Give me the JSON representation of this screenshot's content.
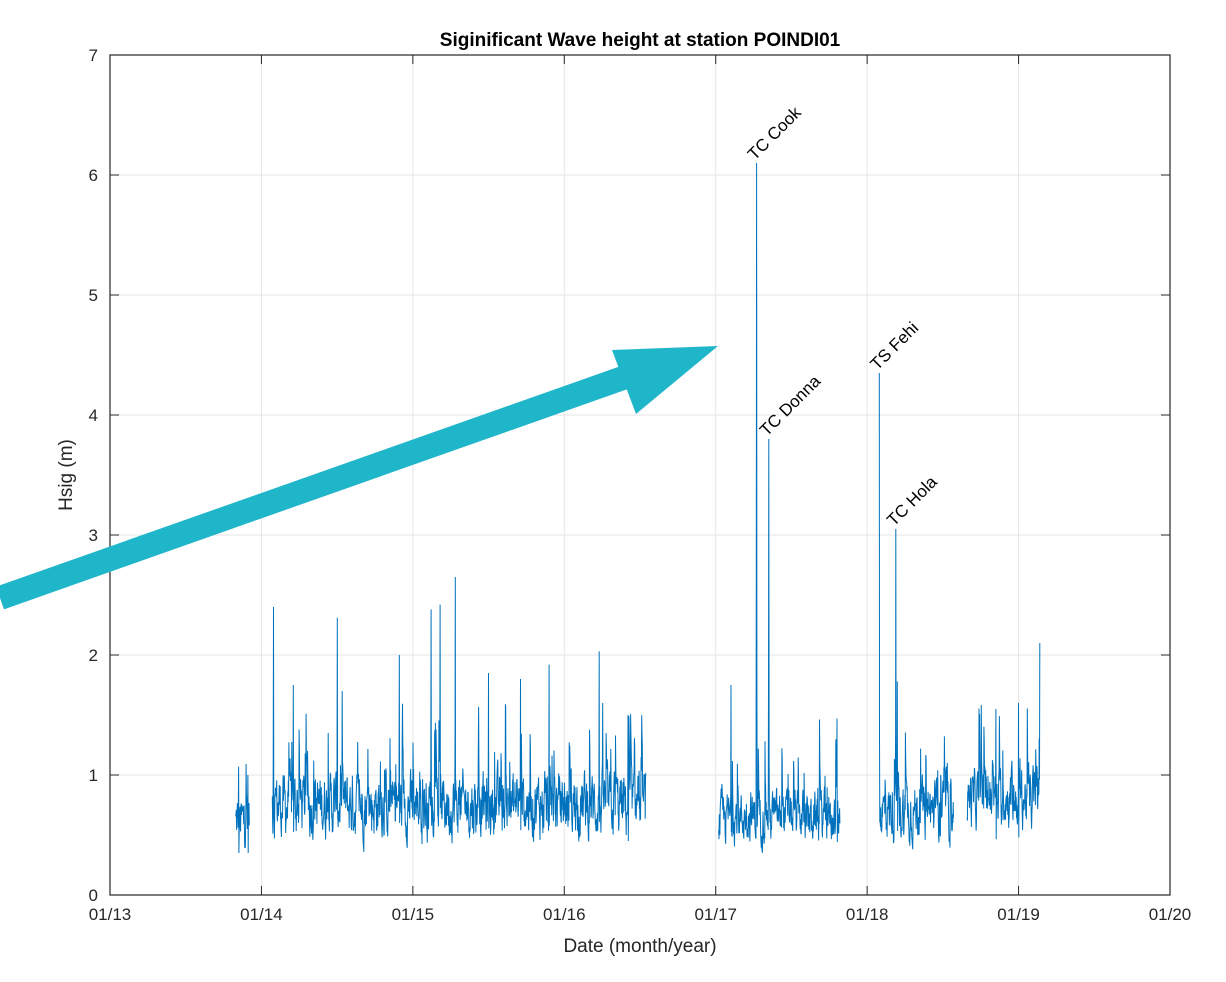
{
  "colors": {
    "series": "#0072BD",
    "arrow": "#1FB6C9",
    "grid": "#E4E4E4",
    "axis": "#262626"
  },
  "chart_data": {
    "type": "line",
    "title": "Siginificant Wave height at station POINDI01",
    "xlabel": "Date (month/year)",
    "ylabel": "Hsig (m)",
    "xlim": [
      2013.0,
      2020.0
    ],
    "ylim": [
      0,
      7
    ],
    "grid": true,
    "x_ticks": [
      {
        "value": 2013,
        "label": "01/13"
      },
      {
        "value": 2014,
        "label": "01/14"
      },
      {
        "value": 2015,
        "label": "01/15"
      },
      {
        "value": 2016,
        "label": "01/16"
      },
      {
        "value": 2017,
        "label": "01/17"
      },
      {
        "value": 2018,
        "label": "01/18"
      },
      {
        "value": 2019,
        "label": "01/19"
      },
      {
        "value": 2020,
        "label": "01/20"
      }
    ],
    "y_ticks": [
      0,
      1,
      2,
      3,
      4,
      5,
      6,
      7
    ],
    "segments": [
      {
        "x_start": 2013.83,
        "x_end": 2013.92,
        "base_mean": 0.6,
        "base_amp": 0.4,
        "peaks": [
          {
            "x": 2013.85,
            "y": 1.07
          },
          {
            "x": 2013.91,
            "y": 1.0
          }
        ]
      },
      {
        "x_start": 2014.07,
        "x_end": 2016.54,
        "base_mean": 0.75,
        "base_amp": 0.45,
        "peaks": [
          {
            "x": 2014.08,
            "y": 2.4
          },
          {
            "x": 2014.21,
            "y": 1.75
          },
          {
            "x": 2014.5,
            "y": 2.31
          },
          {
            "x": 2014.91,
            "y": 2.0
          },
          {
            "x": 2015.12,
            "y": 2.38
          },
          {
            "x": 2015.18,
            "y": 2.42
          },
          {
            "x": 2015.28,
            "y": 2.65
          },
          {
            "x": 2015.5,
            "y": 1.85
          },
          {
            "x": 2015.71,
            "y": 1.8
          },
          {
            "x": 2015.9,
            "y": 1.92
          },
          {
            "x": 2016.23,
            "y": 2.03
          },
          {
            "x": 2016.42,
            "y": 1.5
          }
        ]
      },
      {
        "x_start": 2017.02,
        "x_end": 2017.82,
        "base_mean": 0.65,
        "base_amp": 0.35,
        "peaks": [
          {
            "x": 2017.1,
            "y": 1.75
          },
          {
            "x": 2017.27,
            "y": 6.1
          },
          {
            "x": 2017.35,
            "y": 3.8
          },
          {
            "x": 2017.8,
            "y": 1.47
          }
        ]
      },
      {
        "x_start": 2018.08,
        "x_end": 2018.57,
        "base_mean": 0.7,
        "base_amp": 0.4,
        "peaks": [
          {
            "x": 2018.08,
            "y": 4.35
          },
          {
            "x": 2018.19,
            "y": 3.05
          },
          {
            "x": 2018.2,
            "y": 1.78
          }
        ]
      },
      {
        "x_start": 2018.66,
        "x_end": 2019.14,
        "base_mean": 0.8,
        "base_amp": 0.4,
        "peaks": [
          {
            "x": 2018.85,
            "y": 1.55
          },
          {
            "x": 2019.0,
            "y": 1.6
          },
          {
            "x": 2019.14,
            "y": 2.1
          }
        ]
      }
    ],
    "annotations": [
      {
        "text": "TC Cook",
        "x": 2017.27,
        "y": 6.1
      },
      {
        "text": "TC Donna",
        "x": 2017.35,
        "y": 3.8
      },
      {
        "text": "TS Fehi",
        "x": 2018.08,
        "y": 4.35
      },
      {
        "text": "TC Hola",
        "x": 2018.19,
        "y": 3.05
      }
    ]
  }
}
